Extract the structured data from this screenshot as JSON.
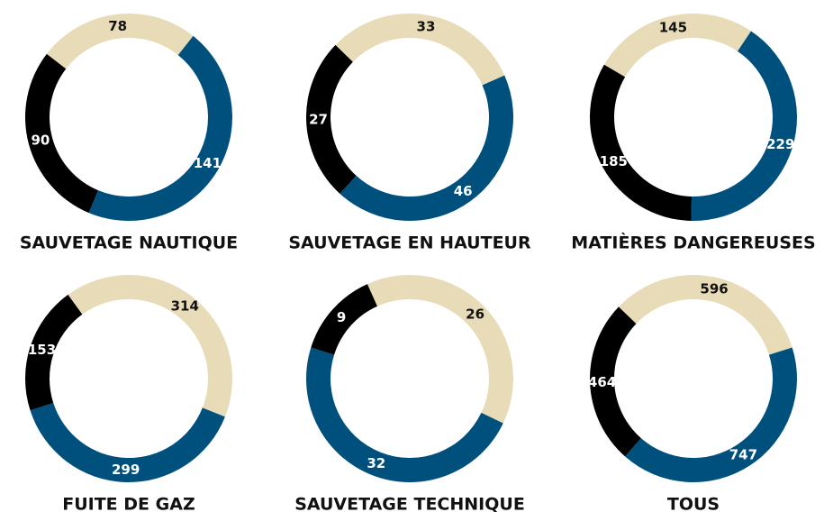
{
  "chart_data": [
    {
      "type": "donut",
      "title": "SAUVETAGE NAUTIQUE",
      "values": [
        78,
        141,
        90
      ],
      "colors": [
        "#e8dcb8",
        "#00507d",
        "#000000"
      ]
    },
    {
      "type": "donut",
      "title": "SAUVETAGE EN HAUTEUR",
      "values": [
        33,
        46,
        27
      ],
      "colors": [
        "#e8dcb8",
        "#00507d",
        "#000000"
      ]
    },
    {
      "type": "donut",
      "title": "MATIÈRES DANGEREUSES",
      "values": [
        145,
        229,
        185
      ],
      "colors": [
        "#e8dcb8",
        "#00507d",
        "#000000"
      ]
    },
    {
      "type": "donut",
      "title": "FUITE DE GAZ",
      "values": [
        314,
        299,
        153
      ],
      "colors": [
        "#e8dcb8",
        "#00507d",
        "#000000"
      ]
    },
    {
      "type": "donut",
      "title": "SAUVETAGE TECHNIQUE",
      "values": [
        26,
        32,
        9
      ],
      "colors": [
        "#e8dcb8",
        "#00507d",
        "#000000"
      ]
    },
    {
      "type": "donut",
      "title": "TOUS",
      "values": [
        596,
        747,
        464
      ],
      "colors": [
        "#e8dcb8",
        "#00507d",
        "#000000"
      ]
    }
  ]
}
